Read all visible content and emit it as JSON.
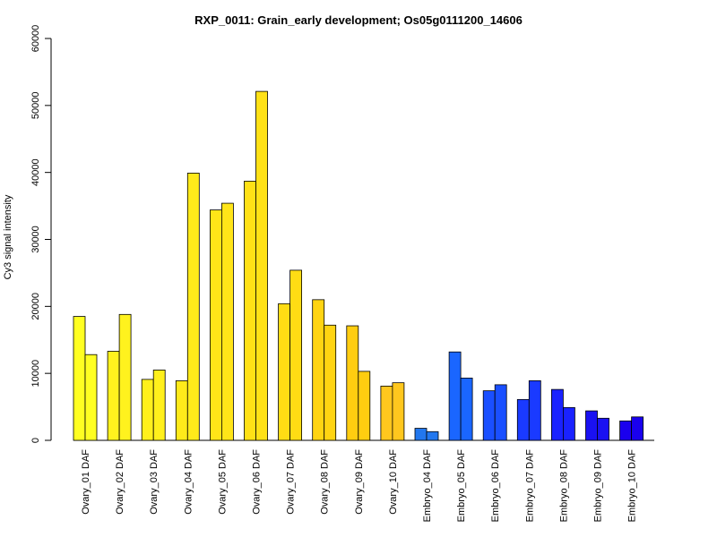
{
  "chart_data": {
    "type": "bar",
    "title": "RXP_0011: Grain_early development; Os05g0111200_14606",
    "xlabel": "",
    "ylabel": "Cy3 signal intensity",
    "ylim": [
      0,
      60000
    ],
    "yticks": [
      0,
      10000,
      20000,
      30000,
      40000,
      50000,
      60000
    ],
    "grid": false,
    "legend": "none",
    "categories": [
      "Ovary_01 DAF",
      "Ovary_02 DAF",
      "Ovary_03 DAF",
      "Ovary_04 DAF",
      "Ovary_05 DAF",
      "Ovary_06 DAF",
      "Ovary_07 DAF",
      "Ovary_08 DAF",
      "Ovary_09 DAF",
      "Ovary_10 DAF",
      "Embryo_04 DAF",
      "Embryo_05 DAF",
      "Embryo_06 DAF",
      "Embryo_07 DAF",
      "Embryo_08 DAF",
      "Embryo_09 DAF",
      "Embryo_10 DAF"
    ],
    "series": [
      {
        "values": [
          18500,
          13300,
          9100,
          8900,
          34400,
          38700,
          20400,
          21000,
          17100,
          8100,
          1800,
          13200,
          7400,
          6100,
          7600,
          4400,
          2900
        ]
      },
      {
        "values": [
          12800,
          18800,
          10500,
          39900,
          35400,
          52100,
          25400,
          17200,
          10300,
          8600,
          1300,
          9300,
          8300,
          8900,
          4900,
          3300,
          3500
        ]
      }
    ],
    "bar_colors": [
      "#FFFF22",
      "#FFF21E",
      "#FFF01C",
      "#FFEA1A",
      "#FFE518",
      "#FFE116",
      "#FFDC14",
      "#FFD412",
      "#FFCD10",
      "#FFC71E",
      "#2277EE",
      "#1A66FF",
      "#1A4FFF",
      "#1A3AFF",
      "#1A22FF",
      "#1A11F2",
      "#1A00EE"
    ]
  }
}
